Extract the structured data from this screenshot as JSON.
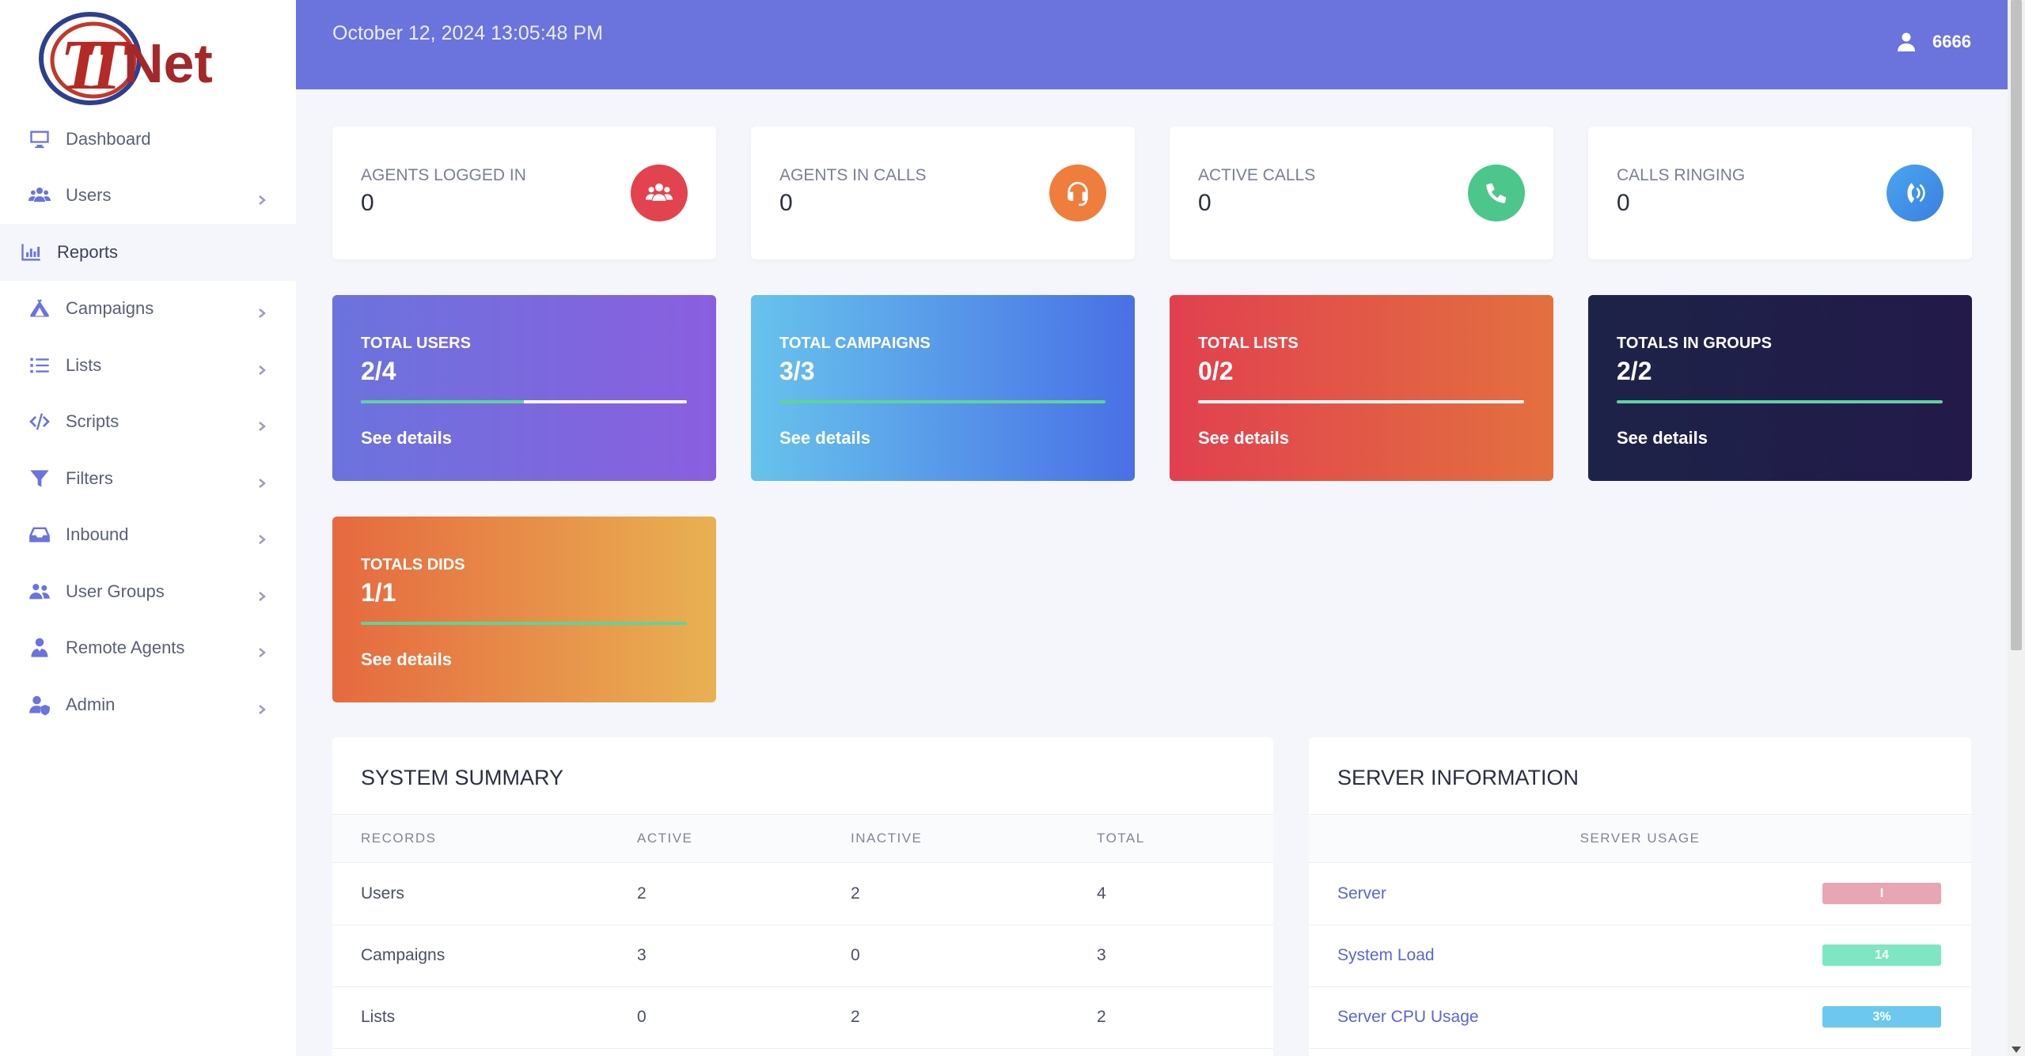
{
  "brand": {
    "name": "TTNet"
  },
  "sidebar": {
    "items": [
      {
        "label": "Dashboard",
        "icon": "monitor-icon",
        "has_chevron": false
      },
      {
        "label": "Users",
        "icon": "users-icon",
        "has_chevron": true
      },
      {
        "label": "Reports",
        "icon": "bar-chart-icon",
        "has_chevron": false,
        "active": true
      },
      {
        "label": "Campaigns",
        "icon": "campground-icon",
        "has_chevron": true
      },
      {
        "label": "Lists",
        "icon": "list-icon",
        "has_chevron": true
      },
      {
        "label": "Scripts",
        "icon": "code-icon",
        "has_chevron": true
      },
      {
        "label": "Filters",
        "icon": "filter-icon",
        "has_chevron": true
      },
      {
        "label": "Inbound",
        "icon": "inbox-icon",
        "has_chevron": true
      },
      {
        "label": "User Groups",
        "icon": "user-group-icon",
        "has_chevron": true
      },
      {
        "label": "Remote Agents",
        "icon": "user-tie-icon",
        "has_chevron": true
      },
      {
        "label": "Admin",
        "icon": "user-shield-icon",
        "has_chevron": true
      }
    ]
  },
  "header": {
    "datetime": "October 12, 2024 13:05:48 PM",
    "username": "6666",
    "bg_color": "#6b73dd"
  },
  "stats": [
    {
      "label": "AGENTS LOGGED IN",
      "value": "0",
      "icon": "users-icon",
      "color": "#e2434f"
    },
    {
      "label": "AGENTS IN CALLS",
      "value": "0",
      "icon": "headset-icon",
      "color": "#ef7d3c"
    },
    {
      "label": "ACTIVE CALLS",
      "value": "0",
      "icon": "phone-icon",
      "color": "#4cc68a"
    },
    {
      "label": "CALLS RINGING",
      "value": "0",
      "icon": "phone-volume-icon",
      "color": "#3a8de6"
    }
  ],
  "totals": [
    {
      "label": "TOTAL USERS",
      "value": "2/4",
      "progress": 0.5,
      "link": "See details"
    },
    {
      "label": "TOTAL CAMPAIGNS",
      "value": "3/3",
      "progress": 1.0,
      "link": "See details"
    },
    {
      "label": "TOTAL LISTS",
      "value": "0/2",
      "progress": 0.0,
      "link": "See details"
    },
    {
      "label": "TOTALS IN GROUPS",
      "value": "2/2",
      "progress": 1.0,
      "link": "See details"
    },
    {
      "label": "TOTALS DIDS",
      "value": "1/1",
      "progress": 1.0,
      "link": "See details"
    }
  ],
  "system_summary": {
    "title": "SYSTEM SUMMARY",
    "columns": [
      "RECORDS",
      "ACTIVE",
      "INACTIVE",
      "TOTAL"
    ],
    "rows": [
      {
        "records": "Users",
        "active": "2",
        "inactive": "2",
        "total": "4"
      },
      {
        "records": "Campaigns",
        "active": "3",
        "inactive": "0",
        "total": "3"
      },
      {
        "records": "Lists",
        "active": "0",
        "inactive": "2",
        "total": "2"
      }
    ]
  },
  "server_info": {
    "title": "SERVER INFORMATION",
    "column": "SERVER USAGE",
    "rows": [
      {
        "label": "Server",
        "badge": "I",
        "color": "#e8a6b4"
      },
      {
        "label": "System Load",
        "badge": "14",
        "color": "#7fe6c4"
      },
      {
        "label": "Server CPU Usage",
        "badge": "3%",
        "color": "#6cc8ef"
      }
    ]
  }
}
